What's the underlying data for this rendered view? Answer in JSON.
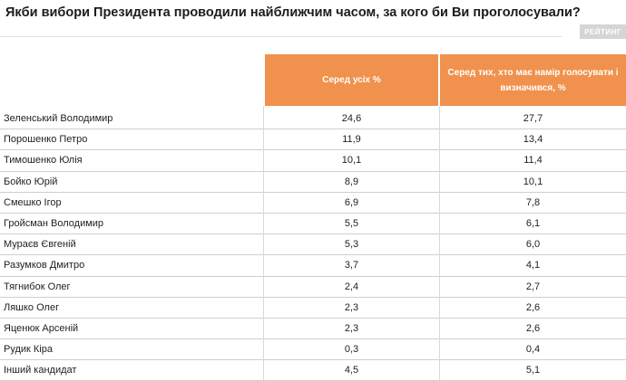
{
  "title": "Якби вибори Президента проводили найближчим часом, за кого би Ви проголосували?",
  "logo_text": "РЕЙТИНГ",
  "table": {
    "columns": [
      "Серед усіх %",
      "Серед тих, хто має намір голосувати і визначився, %"
    ],
    "rows": [
      {
        "name": "Зеленський Володимир",
        "all": "24,6",
        "decided": "27,7"
      },
      {
        "name": "Порошенко Петро",
        "all": "11,9",
        "decided": "13,4"
      },
      {
        "name": "Тимошенко Юлія",
        "all": "10,1",
        "decided": "11,4"
      },
      {
        "name": "Бойко Юрій",
        "all": "8,9",
        "decided": "10,1"
      },
      {
        "name": "Смешко Ігор",
        "all": "6,9",
        "decided": "7,8"
      },
      {
        "name": "Гройсман Володимир",
        "all": "5,5",
        "decided": "6,1"
      },
      {
        "name": "Мураєв Євгеній",
        "all": "5,3",
        "decided": "6,0"
      },
      {
        "name": "Разумков Дмитро",
        "all": "3,7",
        "decided": "4,1"
      },
      {
        "name": "Тягнибок Олег",
        "all": "2,4",
        "decided": "2,7"
      },
      {
        "name": "Ляшко Олег",
        "all": "2,3",
        "decided": "2,6"
      },
      {
        "name": "Яценюк  Арсеній",
        "all": "2,3",
        "decided": "2,6"
      },
      {
        "name": "Рудик Кіра",
        "all": "0,3",
        "decided": "0,4"
      },
      {
        "name": "Інший кандидат",
        "all": "4,5",
        "decided": "5,1"
      }
    ]
  },
  "colors": {
    "header_bg": "#f0924d",
    "header_text": "#ffffff",
    "row_divider": "#cfcfcf"
  }
}
